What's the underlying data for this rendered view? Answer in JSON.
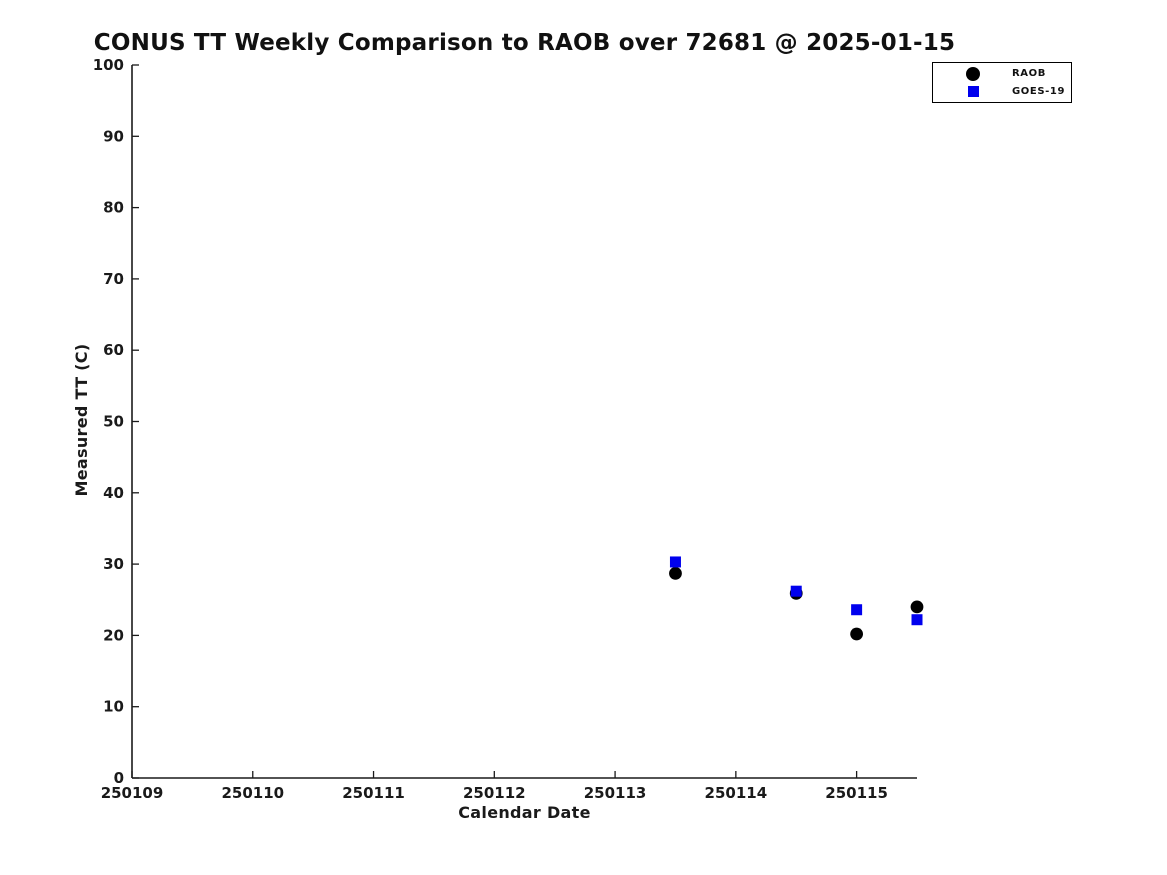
{
  "chart_data": {
    "type": "scatter",
    "title": "CONUS TT Weekly Comparison to RAOB over 72681 @ 2025-01-15",
    "xlabel": "Calendar Date",
    "ylabel": "Measured TT (C)",
    "xlim": [
      250109,
      250115.5
    ],
    "ylim": [
      0,
      100
    ],
    "x_ticks": [
      250109,
      250110,
      250111,
      250112,
      250113,
      250114,
      250115
    ],
    "y_ticks": [
      0,
      10,
      20,
      30,
      40,
      50,
      60,
      70,
      80,
      90,
      100
    ],
    "grid": false,
    "legend_position": "top-right",
    "series": [
      {
        "name": "RAOB",
        "marker": "circle",
        "color": "#000000",
        "x": [
          250113.5,
          250114.5,
          250115,
          250115.5
        ],
        "y": [
          28.7,
          25.9,
          20.2,
          24.0
        ]
      },
      {
        "name": "GOES-19",
        "marker": "square",
        "color": "#0000ee",
        "x": [
          250113.5,
          250114.5,
          250115,
          250115.5
        ],
        "y": [
          30.3,
          26.2,
          23.6,
          22.2
        ]
      }
    ]
  },
  "colors": {
    "axis": "#1a1a1a",
    "text": "#1a1a1a",
    "background": "#ffffff"
  }
}
